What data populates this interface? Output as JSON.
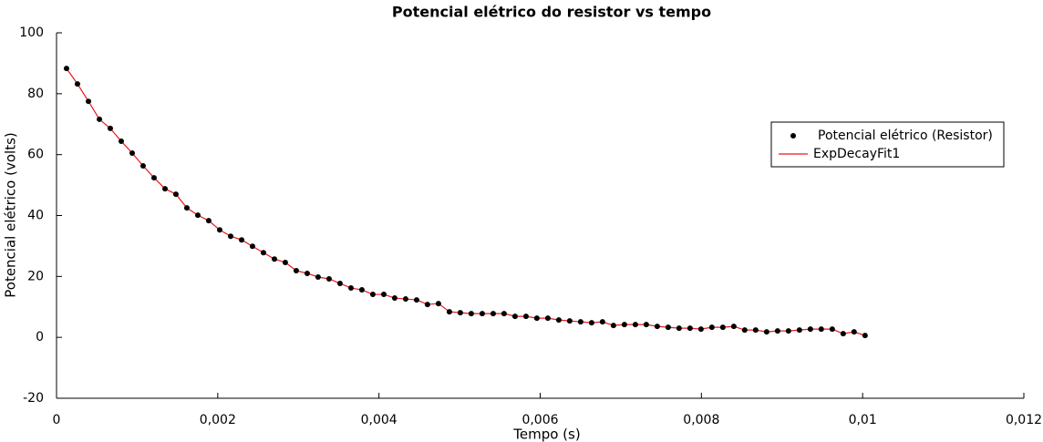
{
  "chart_data": {
    "type": "scatter",
    "title": "Potencial elétrico do resistor vs tempo",
    "xlabel": "Tempo (s)",
    "ylabel": "Potencial elétrico (volts)",
    "x": [
      0.000124,
      0.00026,
      0.000396,
      0.000532,
      0.000667,
      0.000803,
      0.000939,
      0.001074,
      0.00121,
      0.001346,
      0.001481,
      0.001617,
      0.001753,
      0.001888,
      0.002024,
      0.00216,
      0.002296,
      0.002431,
      0.002567,
      0.002703,
      0.002838,
      0.002974,
      0.00311,
      0.003245,
      0.003381,
      0.003517,
      0.003653,
      0.003788,
      0.003924,
      0.00406,
      0.004195,
      0.004331,
      0.004467,
      0.004602,
      0.004738,
      0.004874,
      0.005009,
      0.005145,
      0.005281,
      0.005417,
      0.005552,
      0.005688,
      0.005824,
      0.005959,
      0.006095,
      0.006231,
      0.006366,
      0.006502,
      0.006638,
      0.006773,
      0.006909,
      0.007045,
      0.007181,
      0.007316,
      0.007452,
      0.007588,
      0.007723,
      0.007859,
      0.007995,
      0.00813,
      0.008266,
      0.008402,
      0.008537,
      0.008673,
      0.008809,
      0.008945,
      0.00908,
      0.009216,
      0.009352,
      0.009487,
      0.009623,
      0.009759,
      0.009894,
      0.01003
    ],
    "series": [
      {
        "name": "Potencial elétrico (Resistor)",
        "color": "#000000",
        "mode": "markers",
        "values": [
          88.3,
          83.2,
          77.5,
          71.6,
          68.6,
          64.4,
          60.5,
          56.3,
          52.4,
          48.8,
          47.0,
          42.5,
          40.1,
          38.3,
          35.3,
          33.2,
          32.0,
          29.9,
          27.8,
          25.7,
          24.6,
          21.9,
          21.0,
          19.8,
          19.2,
          17.7,
          16.2,
          15.6,
          14.1,
          14.1,
          12.9,
          12.6,
          12.3,
          10.8,
          11.1,
          8.4,
          8.1,
          7.8,
          7.8,
          7.8,
          7.8,
          6.9,
          6.9,
          6.3,
          6.3,
          5.7,
          5.4,
          5.1,
          4.8,
          5.1,
          3.9,
          4.2,
          4.2,
          4.2,
          3.6,
          3.3,
          3.0,
          3.0,
          2.7,
          3.3,
          3.3,
          3.6,
          2.4,
          2.4,
          1.8,
          2.1,
          2.1,
          2.4,
          2.7,
          2.7,
          2.7,
          1.2,
          1.8,
          0.6
        ]
      },
      {
        "name": "ExpDecayFit1",
        "color": "#e8191d",
        "mode": "line",
        "values": [
          88.3,
          83.2,
          77.5,
          71.6,
          68.6,
          64.4,
          60.5,
          56.3,
          52.4,
          48.8,
          47.0,
          42.5,
          40.1,
          38.3,
          35.3,
          33.2,
          32.0,
          29.9,
          27.8,
          25.7,
          24.6,
          21.9,
          21.0,
          19.8,
          19.2,
          17.7,
          16.2,
          15.6,
          14.1,
          14.1,
          12.9,
          12.6,
          12.3,
          10.8,
          11.1,
          8.4,
          8.1,
          7.8,
          7.8,
          7.8,
          7.8,
          6.9,
          6.9,
          6.3,
          6.3,
          5.7,
          5.4,
          5.1,
          4.8,
          5.1,
          3.9,
          4.2,
          4.2,
          4.2,
          3.6,
          3.3,
          3.0,
          3.0,
          2.7,
          3.3,
          3.3,
          3.6,
          2.4,
          2.4,
          1.8,
          2.1,
          2.1,
          2.4,
          2.7,
          2.7,
          2.7,
          1.2,
          1.8,
          0.6
        ]
      }
    ],
    "xlim": [
      0,
      0.012
    ],
    "xticks": [
      0,
      {
        "value": 0.002,
        "label": "0,002"
      },
      {
        "value": 0.004,
        "label": "0,004"
      },
      {
        "value": 0.006,
        "label": "0,006"
      },
      {
        "value": 0.008,
        "label": "0,008"
      },
      {
        "value": 0.01,
        "label": "0,01"
      },
      {
        "value": 0.012,
        "label": "0,012"
      }
    ],
    "ylim": [
      -20,
      100
    ],
    "yticks": [
      -20,
      0,
      20,
      40,
      60,
      80,
      100
    ],
    "grid": false,
    "legend": "upper-right"
  }
}
